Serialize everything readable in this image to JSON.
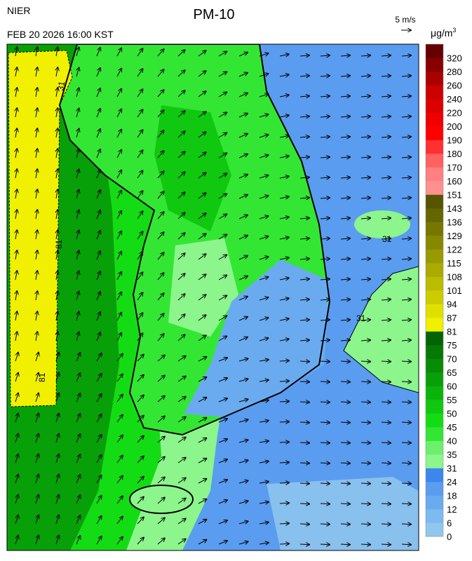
{
  "header": {
    "agency": "NIER",
    "datetime": "FEB 20 2026 16:00 KST",
    "title": "PM-10",
    "wind_scale": "5 m/s",
    "unit": "μg/m",
    "unit_sup": "3"
  },
  "contour_labels": [
    "31",
    "81",
    "81",
    "31",
    "31"
  ],
  "colorbar": {
    "levels": [
      0,
      6,
      12,
      18,
      24,
      31,
      35,
      40,
      45,
      50,
      55,
      60,
      65,
      70,
      75,
      81,
      87,
      94,
      101,
      108,
      115,
      122,
      129,
      136,
      143,
      151,
      160,
      170,
      180,
      190,
      200,
      220,
      240,
      260,
      280,
      320
    ],
    "colors": [
      "#8fc8ec",
      "#7cbaf0",
      "#6aabf0",
      "#5a9cf0",
      "#3d86ee",
      "#8cf58c",
      "#6cf06c",
      "#33e633",
      "#14dc14",
      "#10c810",
      "#0ab40a",
      "#08a008",
      "#068c06",
      "#057805",
      "#046404",
      "#f0f000",
      "#e0e000",
      "#cccc00",
      "#bbbb00",
      "#aaaa00",
      "#999900",
      "#888800",
      "#777700",
      "#666600",
      "#555500",
      "#ff9090",
      "#ff8080",
      "#ff6060",
      "#ff3030",
      "#ff0000",
      "#ee0000",
      "#dd0000",
      "#cc0000",
      "#aa0000",
      "#880000",
      "#660000"
    ]
  }
}
